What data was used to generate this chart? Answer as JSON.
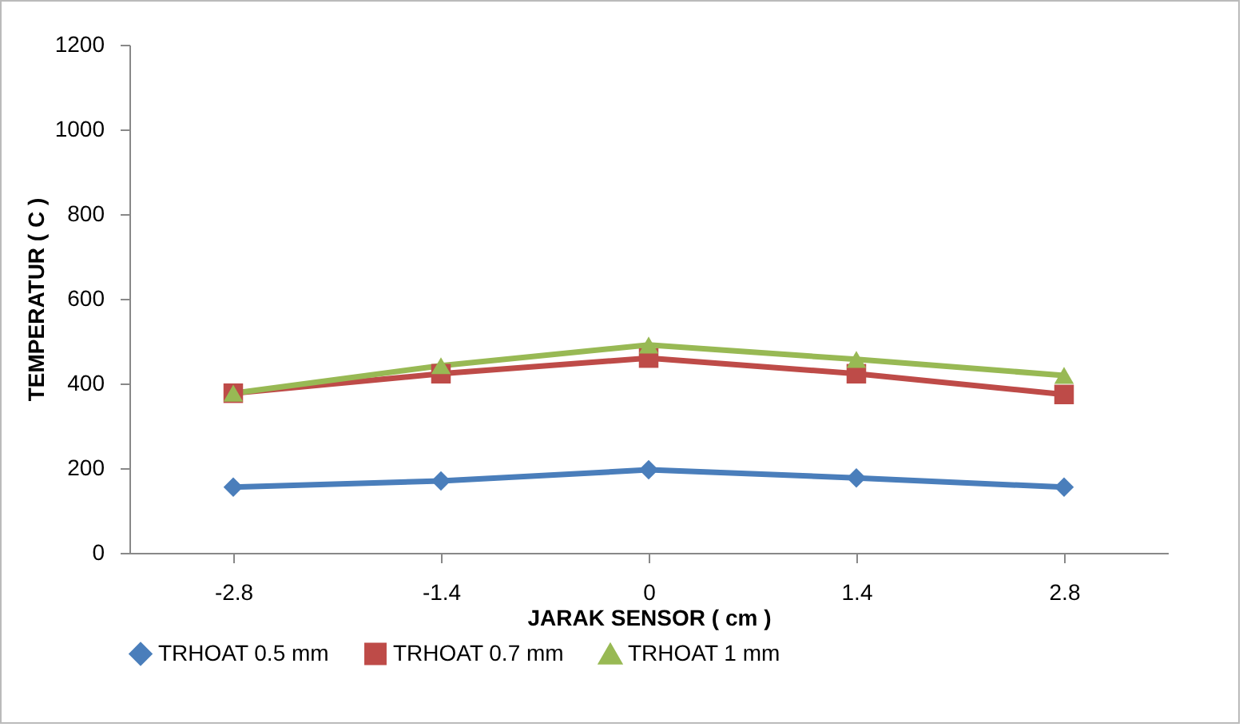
{
  "chart_data": {
    "type": "line",
    "xlabel": "JARAK SENSOR ( cm )",
    "ylabel": "TEMPERATUR ( C )",
    "categories": [
      "-2.8",
      "-1.4",
      "0",
      "1.4",
      "2.8"
    ],
    "series": [
      {
        "name": "TRHOAT 0.5 mm",
        "color": "#4a7ebb",
        "marker": "diamond",
        "values": [
          155,
          170,
          196,
          177,
          155
        ]
      },
      {
        "name": "TRHOAT 0.7 mm",
        "color": "#be4b48",
        "marker": "square",
        "values": [
          377,
          423,
          460,
          423,
          374
        ]
      },
      {
        "name": "TRHOAT  1 mm",
        "color": "#98b954",
        "marker": "triangle",
        "values": [
          377,
          442,
          491,
          457,
          419
        ]
      }
    ],
    "ylim": [
      0,
      1200
    ],
    "yticks": [
      0,
      200,
      400,
      600,
      800,
      1000,
      1200
    ],
    "grid": false,
    "legend": "bottom",
    "line_style": "solid"
  }
}
